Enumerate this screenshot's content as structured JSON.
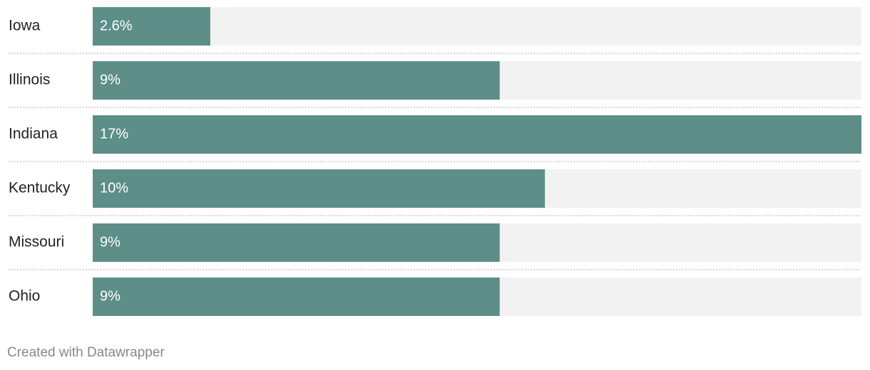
{
  "chart_data": {
    "type": "bar",
    "orientation": "horizontal",
    "categories": [
      "Iowa",
      "Illinois",
      "Indiana",
      "Kentucky",
      "Missouri",
      "Ohio"
    ],
    "values": [
      2.6,
      9,
      17,
      10,
      9,
      9
    ],
    "value_labels": [
      "2.6%",
      "9%",
      "17%",
      "10%",
      "9%",
      "9%"
    ],
    "color": "#5d8e88",
    "credit": "Created with Datawrapper"
  }
}
